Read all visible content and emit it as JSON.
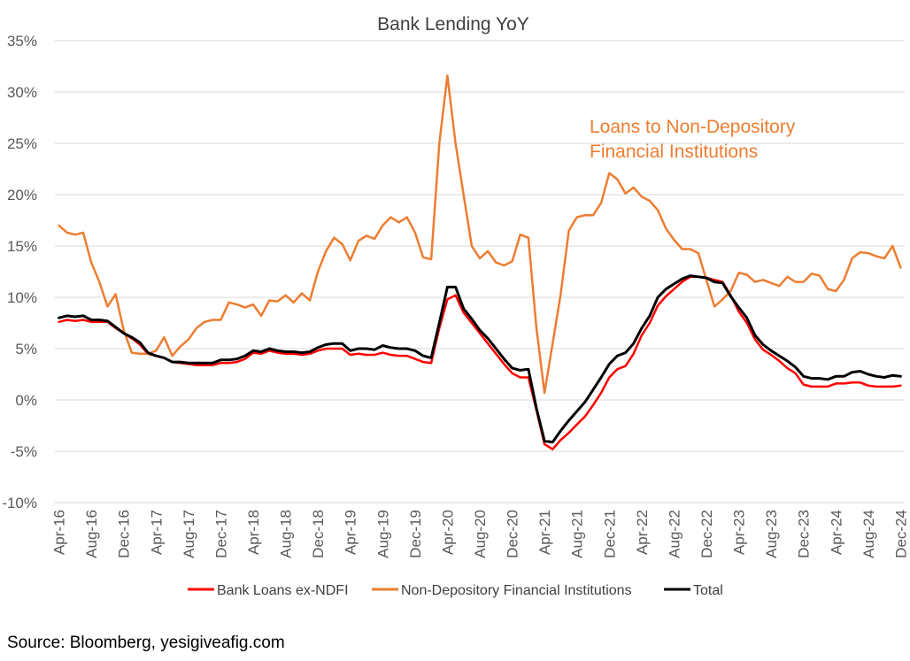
{
  "source_text": "Source: Bloomberg, yesigiveafig.com",
  "chart_data": {
    "type": "line",
    "title": "Bank Lending YoY",
    "annotation": "Loans to Non-Depository Financial Institutions",
    "annotation_lines": [
      "Loans to Non-Depository",
      "Financial Institutions"
    ],
    "annotation_color": "#ed7d31",
    "xlabel": "",
    "ylabel": "",
    "ylim": [
      -10,
      35
    ],
    "yticks": [
      -10,
      -5,
      0,
      5,
      10,
      15,
      20,
      25,
      30,
      35
    ],
    "ytick_labels": [
      "-10%",
      "-5%",
      "0%",
      "5%",
      "10%",
      "15%",
      "20%",
      "25%",
      "30%",
      "35%"
    ],
    "grid": true,
    "legend_position": "bottom",
    "x_start": "2016-04",
    "x_tick_labels": [
      "Apr-16",
      "Aug-16",
      "Dec-16",
      "Apr-17",
      "Aug-17",
      "Dec-17",
      "Apr-18",
      "Aug-18",
      "Dec-18",
      "Apr-19",
      "Aug-19",
      "Dec-19",
      "Apr-20",
      "Aug-20",
      "Dec-20",
      "Apr-21",
      "Aug-21",
      "Dec-21",
      "Apr-22",
      "Aug-22",
      "Dec-22",
      "Apr-23",
      "Aug-23",
      "Dec-23",
      "Apr-24",
      "Aug-24",
      "Dec-24"
    ],
    "series": [
      {
        "name": "Bank Loans ex-NDFI",
        "color": "#ff0000",
        "values": [
          7.6,
          7.8,
          7.7,
          7.8,
          7.6,
          7.6,
          7.6,
          7.0,
          6.5,
          6.0,
          5.4,
          4.5,
          4.3,
          4.1,
          3.7,
          3.6,
          3.5,
          3.4,
          3.4,
          3.4,
          3.6,
          3.6,
          3.7,
          4.0,
          4.6,
          4.5,
          4.8,
          4.6,
          4.5,
          4.5,
          4.4,
          4.5,
          4.8,
          5.0,
          5.0,
          5.0,
          4.4,
          4.5,
          4.4,
          4.4,
          4.6,
          4.4,
          4.3,
          4.3,
          4.0,
          3.7,
          3.6,
          7.0,
          9.8,
          10.2,
          8.5,
          7.5,
          6.5,
          5.5,
          4.5,
          3.5,
          2.6,
          2.2,
          2.2,
          -1.0,
          -4.3,
          -4.8,
          -3.9,
          -3.2,
          -2.4,
          -1.6,
          -0.5,
          0.7,
          2.2,
          3.0,
          3.3,
          4.5,
          6.3,
          7.5,
          9.2,
          10.1,
          10.8,
          11.5,
          12.0,
          12.0,
          11.9,
          11.7,
          11.5,
          10.2,
          8.6,
          7.5,
          5.9,
          4.9,
          4.4,
          3.8,
          3.1,
          2.6,
          1.5,
          1.3,
          1.3,
          1.3,
          1.6,
          1.6,
          1.7,
          1.7,
          1.4,
          1.3,
          1.3,
          1.3,
          1.4
        ]
      },
      {
        "name": "Non-Depository Financial Institutions",
        "color": "#ed7d31",
        "values": [
          17.0,
          16.3,
          16.1,
          16.3,
          13.4,
          11.5,
          9.1,
          10.3,
          6.8,
          4.6,
          4.5,
          4.5,
          4.8,
          6.1,
          4.3,
          5.2,
          5.9,
          7.0,
          7.6,
          7.8,
          7.8,
          9.5,
          9.3,
          9.0,
          9.3,
          8.2,
          9.7,
          9.6,
          10.2,
          9.5,
          10.4,
          9.7,
          12.5,
          14.5,
          15.8,
          15.2,
          13.6,
          15.5,
          16.0,
          15.7,
          17.0,
          17.8,
          17.3,
          17.8,
          16.3,
          13.9,
          13.7,
          25.0,
          31.6,
          25.0,
          20.0,
          15.0,
          13.8,
          14.5,
          13.4,
          13.1,
          13.5,
          16.1,
          15.8,
          7.0,
          0.7,
          5.5,
          10.3,
          16.5,
          17.8,
          18.0,
          18.0,
          19.2,
          22.1,
          21.5,
          20.1,
          20.7,
          19.8,
          19.4,
          18.5,
          16.7,
          15.6,
          14.7,
          14.7,
          14.3,
          11.7,
          9.1,
          9.8,
          10.6,
          12.4,
          12.2,
          11.5,
          11.7,
          11.4,
          11.1,
          12.0,
          11.5,
          11.5,
          12.3,
          12.1,
          10.8,
          10.6,
          11.7,
          13.8,
          14.4,
          14.3,
          14.0,
          13.8,
          15.0,
          12.9
        ]
      },
      {
        "name": "Total",
        "color": "#000000",
        "values": [
          8.0,
          8.2,
          8.1,
          8.2,
          7.8,
          7.8,
          7.7,
          7.1,
          6.5,
          6.1,
          5.6,
          4.6,
          4.3,
          4.1,
          3.7,
          3.7,
          3.6,
          3.6,
          3.6,
          3.6,
          3.9,
          3.9,
          4.0,
          4.3,
          4.8,
          4.7,
          5.0,
          4.8,
          4.7,
          4.7,
          4.6,
          4.7,
          5.1,
          5.4,
          5.5,
          5.5,
          4.8,
          5.0,
          5.0,
          4.9,
          5.3,
          5.1,
          5.0,
          5.0,
          4.8,
          4.3,
          4.1,
          7.5,
          11.0,
          11.0,
          8.9,
          7.9,
          6.8,
          6.0,
          5.0,
          4.0,
          3.1,
          2.9,
          3.0,
          -0.8,
          -4.0,
          -4.1,
          -3.0,
          -2.0,
          -1.1,
          -0.2,
          1.0,
          2.2,
          3.5,
          4.3,
          4.6,
          5.5,
          7.0,
          8.2,
          10.0,
          10.8,
          11.3,
          11.8,
          12.1,
          12.0,
          11.9,
          11.5,
          11.4,
          10.1,
          9.0,
          8.0,
          6.3,
          5.4,
          4.8,
          4.3,
          3.8,
          3.2,
          2.3,
          2.1,
          2.1,
          2.0,
          2.3,
          2.3,
          2.7,
          2.8,
          2.5,
          2.3,
          2.2,
          2.4,
          2.3
        ]
      }
    ]
  }
}
